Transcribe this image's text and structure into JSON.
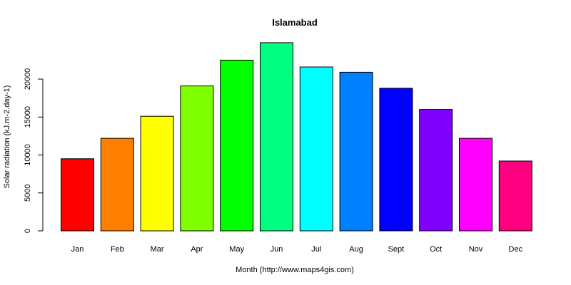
{
  "chart_data": {
    "type": "bar",
    "title": "Islamabad",
    "xlabel": "Month (http://www.maps4gis.com)",
    "ylabel": "Solar radiation (kJ.m-2.day-1)",
    "categories": [
      "Jan",
      "Feb",
      "Mar",
      "Apr",
      "May",
      "Jun",
      "Jul",
      "Aug",
      "Sept",
      "Oct",
      "Nov",
      "Dec"
    ],
    "values": [
      9500,
      12200,
      15100,
      19100,
      22500,
      24800,
      21600,
      20900,
      18800,
      16000,
      12200,
      9200
    ],
    "colors": [
      "#FF0000",
      "#FF8000",
      "#FFFF00",
      "#80FF00",
      "#00FF00",
      "#00FF80",
      "#00FFFF",
      "#0080FF",
      "#0000FF",
      "#8000FF",
      "#FF00FF",
      "#FF0080"
    ],
    "ylim": [
      0,
      25000
    ],
    "yticks": [
      0,
      5000,
      10000,
      15000,
      20000
    ],
    "grid": false,
    "legend": "none"
  }
}
